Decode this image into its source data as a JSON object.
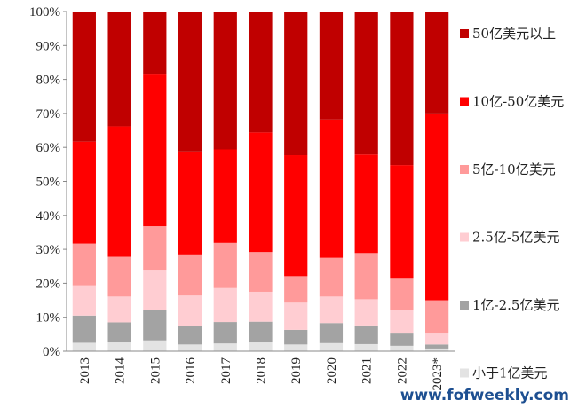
{
  "watermark": "www.fofweekly.com",
  "colors": {
    "lt1": "#e3e3e3",
    "b1_2_5": "#a3a3a3",
    "b2_5_5": "#ffcdd2",
    "b5_10": "#ff9a9a",
    "b10_50": "#ff0000",
    "gt50": "#c00000"
  },
  "chart_data": {
    "type": "bar",
    "stacked": true,
    "categories": [
      "2013",
      "2014",
      "2015",
      "2016",
      "2017",
      "2018",
      "2019",
      "2020",
      "2021",
      "2022",
      "2023*"
    ],
    "ylim": [
      0,
      100
    ],
    "yticks": [
      "0%",
      "10%",
      "20%",
      "30%",
      "40%",
      "50%",
      "60%",
      "70%",
      "80%",
      "90%",
      "100%"
    ],
    "legend_position": "right",
    "series": [
      {
        "name": "小于1亿美元",
        "color_key": "lt1",
        "values": [
          2.5,
          2.6,
          3.2,
          2.0,
          2.3,
          2.6,
          2.0,
          2.4,
          2.1,
          1.6,
          0.8
        ]
      },
      {
        "name": "1亿-2.5亿美元",
        "color_key": "b1_2_5",
        "values": [
          8.0,
          5.9,
          9.0,
          5.4,
          6.3,
          6.1,
          4.3,
          5.9,
          5.5,
          3.6,
          1.2
        ]
      },
      {
        "name": "2.5亿-5亿美元",
        "color_key": "b2_5_5",
        "values": [
          8.9,
          7.6,
          11.8,
          9.0,
          10.0,
          8.8,
          8.0,
          7.8,
          7.7,
          7.0,
          3.2
        ]
      },
      {
        "name": "5亿-10亿美元",
        "color_key": "b5_10",
        "values": [
          12.3,
          11.7,
          12.8,
          12.1,
          13.3,
          11.7,
          7.8,
          11.4,
          13.6,
          9.4,
          9.8
        ]
      },
      {
        "name": "10亿-50亿美元",
        "color_key": "b10_50",
        "values": [
          30.0,
          38.4,
          44.9,
          30.3,
          27.5,
          35.2,
          35.6,
          40.7,
          29.0,
          33.2,
          55.0
        ]
      },
      {
        "name": "50亿美元以上",
        "color_key": "gt50",
        "values": [
          38.3,
          33.8,
          18.3,
          41.2,
          40.6,
          35.6,
          42.3,
          31.8,
          42.1,
          45.2,
          30.0
        ]
      }
    ]
  }
}
